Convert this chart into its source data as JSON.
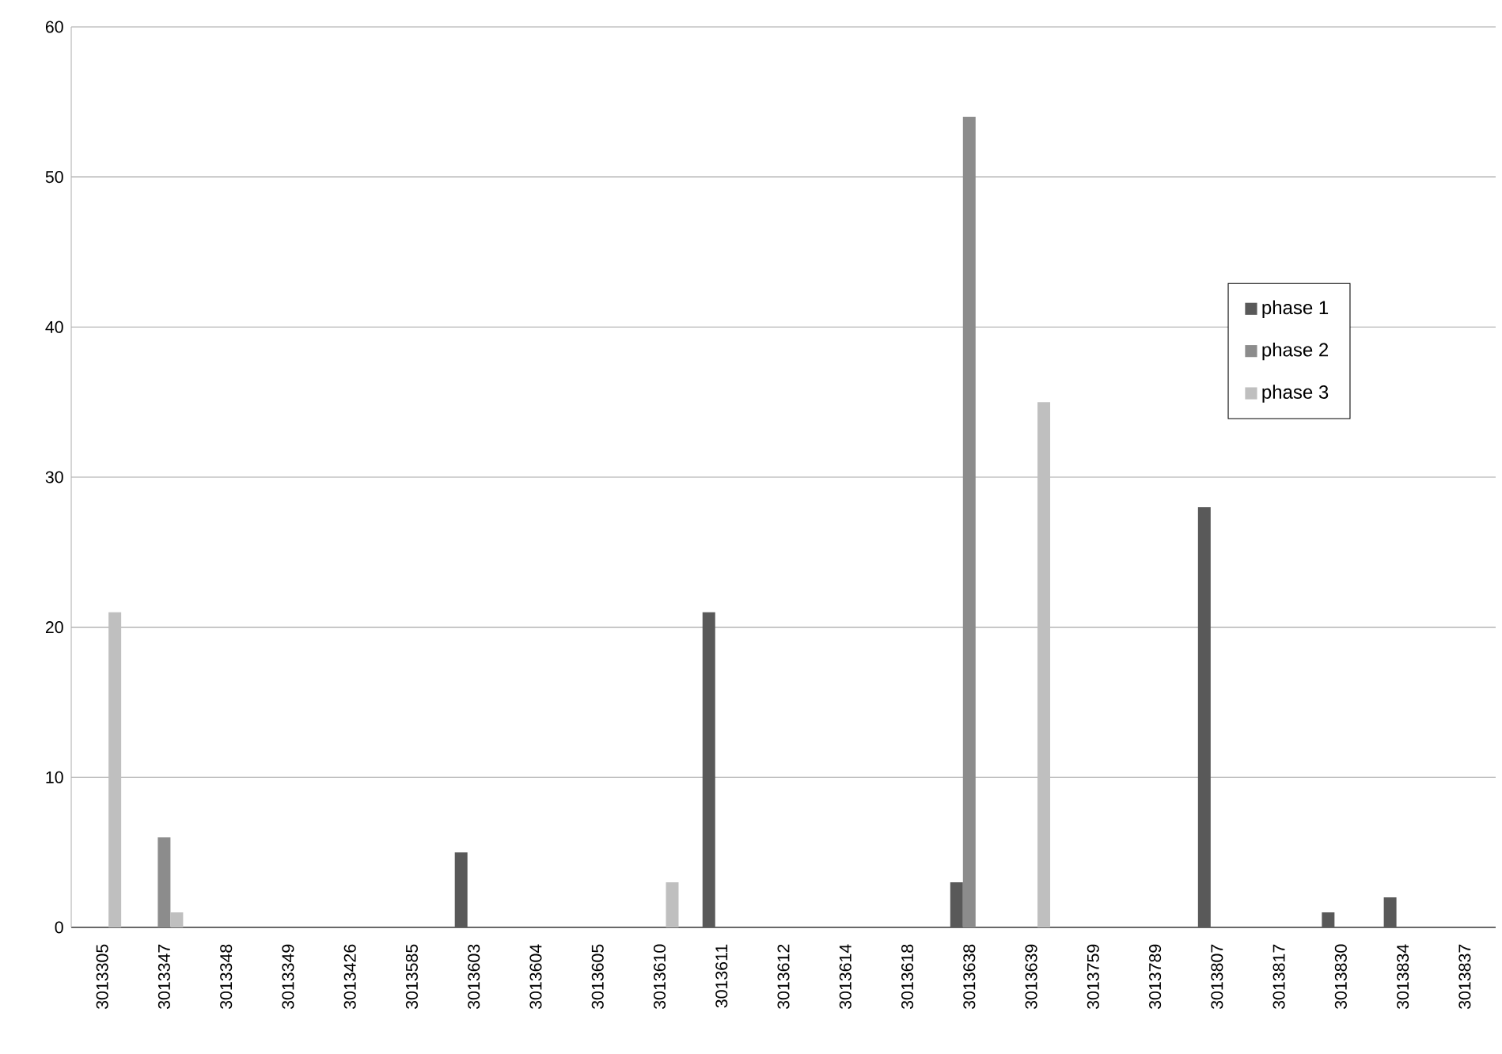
{
  "chart_data": {
    "type": "bar",
    "categories": [
      "3013305",
      "3013347",
      "3013348",
      "3013349",
      "3013426",
      "3013585",
      "3013603",
      "3013604",
      "3013605",
      "3013610",
      "3013611",
      "3013612",
      "3013614",
      "3013618",
      "3013638",
      "3013639",
      "3013759",
      "3013789",
      "3013807",
      "3013817",
      "3013830",
      "3013834",
      "3013837"
    ],
    "series": [
      {
        "name": "phase 1",
        "color": "#595959",
        "values": [
          0,
          0,
          0,
          0,
          0,
          0,
          5,
          0,
          0,
          0,
          21,
          0,
          0,
          0,
          3,
          0,
          0,
          0,
          28,
          0,
          1,
          2,
          0
        ]
      },
      {
        "name": "phase 2",
        "color": "#8c8c8c",
        "values": [
          0,
          6,
          0,
          0,
          0,
          0,
          0,
          0,
          0,
          0,
          0,
          0,
          0,
          0,
          54,
          0,
          0,
          0,
          0,
          0,
          0,
          0,
          0
        ]
      },
      {
        "name": "phase 3",
        "color": "#bfbfbf",
        "values": [
          21,
          1,
          0,
          0,
          0,
          0,
          0,
          0,
          0,
          3,
          0,
          0,
          0,
          0,
          0,
          35,
          0,
          0,
          0,
          0,
          0,
          0,
          0
        ]
      }
    ],
    "ylim": [
      0,
      60
    ],
    "yticks": [
      0,
      10,
      20,
      30,
      40,
      50,
      60
    ],
    "grid": "y",
    "legend": "right"
  }
}
